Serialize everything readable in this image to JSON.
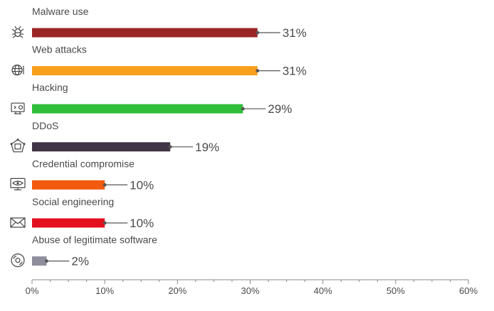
{
  "chart_data": {
    "type": "bar",
    "orientation": "horizontal",
    "categories": [
      "Malware use",
      "Web attacks",
      "Hacking",
      "DDoS",
      "Credential compromise",
      "Social engineering",
      "Abuse of legitimate software"
    ],
    "values": [
      31,
      31,
      29,
      19,
      10,
      10,
      2
    ],
    "value_labels": [
      "31%",
      "31%",
      "29%",
      "19%",
      "10%",
      "10%",
      "2%"
    ],
    "colors": [
      "#9b2525",
      "#f7a01c",
      "#2fbe3a",
      "#3f3545",
      "#f25a0f",
      "#e3101e",
      "#8e8e9c"
    ],
    "icons": [
      "bug-icon",
      "globe-icon",
      "monitor-code-icon",
      "network-device-icon",
      "monitor-eye-icon",
      "envelope-icon",
      "disc-icon"
    ],
    "xlim": [
      0,
      60
    ],
    "xticks": [
      0,
      10,
      20,
      30,
      40,
      50,
      60
    ],
    "xtick_labels": [
      "0%",
      "10%",
      "20%",
      "30%",
      "40%",
      "50%",
      "60%"
    ],
    "grid": false
  }
}
